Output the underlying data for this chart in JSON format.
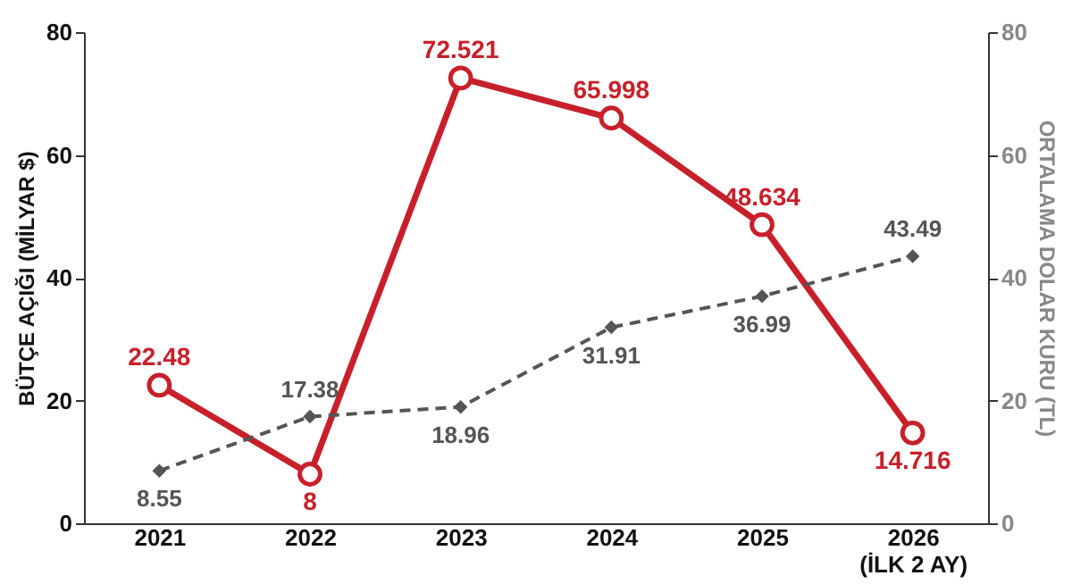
{
  "chart_data": {
    "type": "line",
    "categories": [
      "2021",
      "2022",
      "2023",
      "2024",
      "2025",
      "2026\n(İLK 2 AY)"
    ],
    "ylabel": "BÜTÇE AÇIĞI (MİLYAR $)",
    "y2label": "ORTALAMA DOLAR KURU (TL)",
    "ylim": [
      0,
      80
    ],
    "yticks": [
      0,
      20,
      40,
      60,
      80
    ],
    "y2lim": [
      0,
      80
    ],
    "y2ticks": [
      0,
      20,
      40,
      60,
      80
    ],
    "series": [
      {
        "color": "#c8202a",
        "values": [
          22.48,
          8,
          72.521,
          65.998,
          48.634,
          14.716
        ],
        "marker": "circle",
        "line_style": "solid"
      },
      {
        "color": "#555555",
        "values": [
          8.55,
          17.38,
          18.96,
          31.91,
          36.99,
          43.49
        ],
        "axis": "y2",
        "marker": "diamond",
        "line_style": "dashed"
      }
    ],
    "data_labels": true,
    "grid": false
  }
}
